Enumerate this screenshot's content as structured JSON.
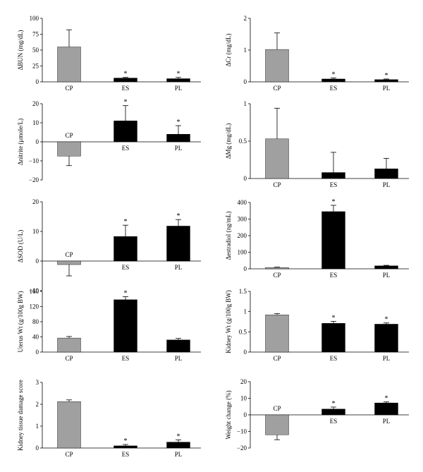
{
  "colors": {
    "CP": "#a0a0a0",
    "ES": "#000000",
    "PL": "#000000"
  },
  "chart_data": [
    {
      "type": "bar",
      "ylabel": "ΔBUN (mg/dL)",
      "ylim": [
        0,
        100
      ],
      "yticks": [
        "0",
        "25",
        "50",
        "75",
        "100"
      ],
      "categories": [
        "CP",
        "ES",
        "PL"
      ],
      "values": [
        55,
        6,
        5
      ],
      "errors": [
        27,
        1,
        2
      ],
      "stars": [
        "",
        "*",
        "*"
      ]
    },
    {
      "type": "bar",
      "ylabel": "ΔCr (mg/dL)",
      "ylim": [
        0,
        2
      ],
      "yticks": [
        "0",
        "1",
        "2"
      ],
      "categories": [
        "CP",
        "ES",
        "PL"
      ],
      "values": [
        1.02,
        0.09,
        0.07
      ],
      "errors": [
        0.52,
        0.03,
        0.02
      ],
      "stars": [
        "",
        "*",
        "*"
      ]
    },
    {
      "type": "bar",
      "ylabel": "Δnitrite (μmole/L)",
      "ylim": [
        -20,
        20
      ],
      "yticks": [
        "−20",
        "−10",
        "0",
        "10",
        "20"
      ],
      "categories": [
        "CP",
        "ES",
        "PL"
      ],
      "values": [
        -7.5,
        11,
        4
      ],
      "errors": [
        5,
        8,
        4.5
      ],
      "stars": [
        "",
        "*",
        "*"
      ]
    },
    {
      "type": "bar",
      "ylabel": "ΔMg (mg/dL)",
      "ylim": [
        0,
        1
      ],
      "yticks": [
        "0",
        "0.5",
        "1"
      ],
      "categories": [
        "CP",
        "ES",
        "PL"
      ],
      "values": [
        0.53,
        0.08,
        0.13
      ],
      "errors": [
        0.41,
        0.27,
        0.14
      ],
      "stars": [
        "",
        "",
        ""
      ]
    },
    {
      "type": "bar",
      "ylabel": "ΔSOD (U/L)",
      "ylim": [
        -10,
        20
      ],
      "yticks": [
        "−10",
        "0",
        "10",
        "20"
      ],
      "categories": [
        "CP",
        "ES",
        "PL"
      ],
      "values": [
        -1.2,
        8.3,
        11.8
      ],
      "errors": [
        3.8,
        3.8,
        2.2
      ],
      "stars": [
        "",
        "*",
        "*"
      ]
    },
    {
      "type": "bar",
      "ylabel": "Δestradiol (ng/mL)",
      "ylim": [
        0,
        400
      ],
      "yticks": [
        "0",
        "100",
        "200",
        "300",
        "400"
      ],
      "categories": [
        "CP",
        "ES",
        "PL"
      ],
      "values": [
        8,
        345,
        18
      ],
      "errors": [
        2,
        38,
        3
      ],
      "stars": [
        "",
        "*",
        ""
      ]
    },
    {
      "type": "bar",
      "ylabel": "Uterus Wt (g/100g BW)",
      "ylim": [
        0,
        160
      ],
      "yticks": [
        "0",
        "40",
        "80",
        "120",
        "160"
      ],
      "categories": [
        "CP",
        "ES",
        "PL"
      ],
      "values": [
        37,
        138,
        32
      ],
      "errors": [
        4,
        8,
        4
      ],
      "stars": [
        "",
        "*",
        ""
      ]
    },
    {
      "type": "bar",
      "ylabel": "Kidney Wt (g/100g BW)",
      "ylim": [
        0,
        1.5
      ],
      "yticks": [
        "0",
        "0.5",
        "1",
        "1.5"
      ],
      "categories": [
        "CP",
        "ES",
        "PL"
      ],
      "values": [
        0.92,
        0.71,
        0.69
      ],
      "errors": [
        0.03,
        0.05,
        0.03
      ],
      "stars": [
        "",
        "*",
        "*"
      ]
    },
    {
      "type": "bar",
      "ylabel": "Kidney tissue damage score",
      "ylim": [
        0,
        3
      ],
      "yticks": [
        "0",
        "1",
        "2",
        "3"
      ],
      "categories": [
        "CP",
        "ES",
        "PL"
      ],
      "values": [
        2.12,
        0.1,
        0.27
      ],
      "errors": [
        0.08,
        0.06,
        0.1
      ],
      "stars": [
        "",
        "*",
        "*"
      ]
    },
    {
      "type": "bar",
      "ylabel": "Weight change (%)",
      "ylim": [
        -20,
        20
      ],
      "yticks": [
        "−20",
        "−10",
        "0",
        "10",
        "20"
      ],
      "categories": [
        "CP",
        "ES",
        "PL"
      ],
      "values": [
        -12,
        3.5,
        7.2
      ],
      "errors": [
        3,
        1.2,
        0.6
      ],
      "stars": [
        "",
        "*",
        "*"
      ]
    }
  ]
}
